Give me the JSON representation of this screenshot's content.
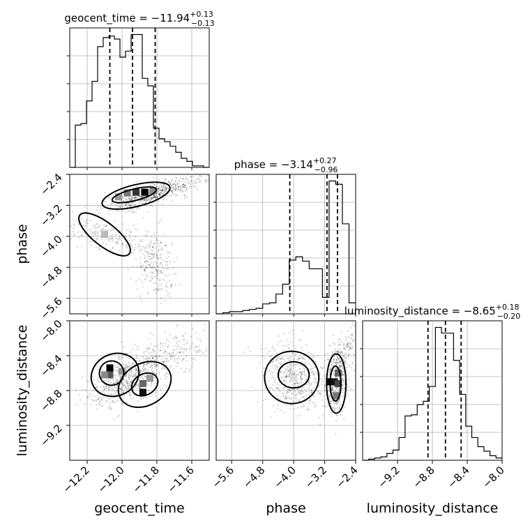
{
  "chart_data": {
    "type": "corner",
    "parameters": [
      "geocent_time",
      "phase",
      "luminosity_distance"
    ],
    "titles": [
      {
        "param": "geocent_time",
        "median": "−11.94",
        "plus": "+0.13",
        "minus": "−0.13"
      },
      {
        "param": "phase",
        "median": "−3.14",
        "plus": "+0.27",
        "minus": "−0.96"
      },
      {
        "param": "luminosity_distance",
        "median": "−8.65",
        "plus": "+0.18",
        "minus": "−0.20"
      }
    ],
    "ranges": {
      "geocent_time": [
        -12.3,
        -11.5
      ],
      "phase": [
        -6.0,
        -2.4
      ],
      "luminosity_distance": [
        -9.6,
        -8.0
      ]
    },
    "ticks": {
      "geocent_time": {
        "values": [
          -12.2,
          -12.0,
          -11.8,
          -11.6
        ],
        "labels": [
          "−12.2",
          "−12.0",
          "−11.8",
          "−11.6"
        ]
      },
      "phase": {
        "values": [
          -5.6,
          -4.8,
          -4.0,
          -3.2,
          -2.4
        ],
        "labels": [
          "−5.6",
          "−4.8",
          "−4.0",
          "−3.2",
          "−2.4"
        ]
      },
      "luminosity_distance": {
        "values": [
          -9.2,
          -8.8,
          -8.4,
          -8.0
        ],
        "labels": [
          "−9.2",
          "−8.8",
          "−8.4",
          "−8.0"
        ]
      }
    },
    "quantiles": {
      "geocent_time": [
        -12.07,
        -11.94,
        -11.81
      ],
      "phase": [
        -4.1,
        -3.14,
        -2.87
      ],
      "luminosity_distance": [
        -8.85,
        -8.65,
        -8.47
      ]
    },
    "histograms": {
      "geocent_time": {
        "range": [
          -12.3,
          -11.5
        ],
        "counts": [
          0,
          28,
          29,
          44,
          57,
          80,
          86,
          87,
          85,
          73,
          77,
          88,
          88,
          59,
          54,
          26,
          19,
          17,
          14,
          10,
          6,
          4,
          1,
          1,
          0
        ]
      },
      "phase": {
        "range": [
          -6.0,
          -2.4
        ],
        "counts": [
          0,
          1,
          2,
          2,
          3,
          4,
          5,
          9,
          10,
          18,
          27,
          49,
          52,
          48,
          41,
          41,
          15,
          121,
          118,
          82,
          10
        ]
      },
      "luminosity_distance": {
        "range": [
          -9.6,
          -8.0
        ],
        "counts": [
          0,
          1,
          2,
          3,
          6,
          9,
          20,
          39,
          40,
          49,
          52,
          65,
          117,
          112,
          112,
          88,
          58,
          30,
          20,
          12,
          8,
          4,
          2
        ]
      }
    },
    "grid": true
  }
}
